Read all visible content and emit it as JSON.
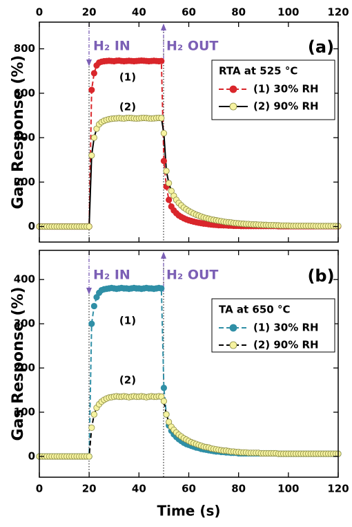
{
  "chart_data": [
    {
      "type": "line",
      "panel_label": "(a)",
      "ylabel": "Gas Response (%)",
      "annotations": [
        "H₂ IN",
        "H₂ OUT",
        "(1)",
        "(2)"
      ],
      "legend_title": "RTA at 525 °C",
      "legend": "upper right",
      "xlim": [
        0,
        120
      ],
      "xticks": [
        0,
        20,
        40,
        60,
        80,
        100,
        120
      ],
      "ylim": [
        -70,
        920
      ],
      "yticks": [
        0,
        200,
        400,
        600,
        800
      ],
      "grid": false,
      "x": [
        0,
        1,
        2,
        3,
        4,
        5,
        6,
        7,
        8,
        9,
        10,
        11,
        12,
        13,
        14,
        15,
        16,
        17,
        18,
        19,
        20,
        21,
        22,
        23,
        24,
        25,
        26,
        27,
        28,
        29,
        30,
        31,
        32,
        33,
        34,
        35,
        36,
        37,
        38,
        39,
        40,
        41,
        42,
        43,
        44,
        45,
        46,
        47,
        48,
        49,
        50,
        51,
        52,
        53,
        54,
        55,
        56,
        57,
        58,
        59,
        60,
        61,
        62,
        63,
        64,
        65,
        66,
        67,
        68,
        69,
        70,
        71,
        72,
        73,
        74,
        75,
        76,
        77,
        78,
        79,
        80,
        81,
        82,
        83,
        84,
        85,
        86,
        87,
        88,
        89,
        90,
        91,
        92,
        93,
        94,
        95,
        96,
        97,
        98,
        99,
        100,
        101,
        102,
        103,
        104,
        105,
        106,
        107,
        108,
        109,
        110,
        111,
        112,
        113,
        114,
        115,
        116,
        117,
        118,
        119,
        120
      ],
      "series": [
        {
          "name": "(1) 30% RH",
          "color": "#d9262b",
          "line_color": "#d9262b",
          "marker_edge": "#d9262b",
          "dash": true,
          "values": [
            0,
            0,
            0,
            0,
            0,
            0,
            0,
            0,
            0,
            0,
            0,
            0,
            0,
            0,
            0,
            0,
            0,
            0,
            0,
            0,
            0,
            615,
            690,
            725,
            738,
            742,
            744,
            745,
            746,
            745,
            744,
            746,
            747,
            745,
            744,
            745,
            746,
            745,
            744,
            745,
            746,
            747,
            746,
            745,
            744,
            745,
            746,
            745,
            744,
            745,
            295,
            180,
            120,
            90,
            72,
            60,
            50,
            43,
            37,
            32,
            28,
            25,
            22,
            19,
            17,
            15,
            13,
            12,
            10,
            9,
            8,
            7,
            6,
            6,
            5,
            5,
            4,
            4,
            3,
            3,
            3,
            2,
            2,
            2,
            2,
            2,
            2,
            2,
            2,
            2,
            2,
            2,
            2,
            2,
            2,
            2,
            1,
            1,
            1,
            1,
            1,
            1,
            1,
            1,
            1,
            1,
            1,
            1,
            1,
            1,
            1,
            1,
            1,
            1,
            1,
            1,
            1,
            1,
            1,
            1,
            1
          ]
        },
        {
          "name": "(2) 90% RH",
          "color": "#f6f3a1",
          "line_color": "#000000",
          "marker_edge": "#8a8a40",
          "dash": false,
          "values": [
            0,
            0,
            0,
            0,
            0,
            0,
            0,
            0,
            0,
            0,
            0,
            0,
            0,
            0,
            0,
            0,
            0,
            0,
            0,
            0,
            0,
            320,
            400,
            440,
            460,
            470,
            476,
            480,
            483,
            485,
            486,
            487,
            488,
            487,
            486,
            488,
            489,
            488,
            487,
            486,
            487,
            488,
            489,
            488,
            487,
            486,
            487,
            488,
            489,
            488,
            420,
            250,
            195,
            160,
            138,
            120,
            106,
            95,
            85,
            77,
            70,
            64,
            58,
            53,
            49,
            45,
            41,
            38,
            35,
            32,
            30,
            28,
            26,
            24,
            22,
            20,
            19,
            18,
            16,
            15,
            14,
            13,
            12,
            11,
            11,
            10,
            9,
            9,
            8,
            8,
            7,
            7,
            6,
            6,
            6,
            5,
            5,
            4,
            4,
            4,
            4,
            3,
            3,
            3,
            3,
            3,
            3,
            3,
            3,
            3,
            3,
            2,
            2,
            2,
            2,
            2,
            2,
            2,
            2,
            2,
            2
          ]
        }
      ]
    },
    {
      "type": "line",
      "panel_label": "(b)",
      "ylabel": "Gas Response (%)",
      "xlabel": "Time (s)",
      "annotations": [
        "H₂ IN",
        "H₂ OUT",
        "(1)",
        "(2)"
      ],
      "legend_title": "TA at 650 °C",
      "legend": "upper right",
      "xlim": [
        0,
        120
      ],
      "xticks": [
        0,
        20,
        40,
        60,
        80,
        100,
        120
      ],
      "ylim": [
        -47,
        466
      ],
      "yticks": [
        0,
        100,
        200,
        300,
        400
      ],
      "grid": false,
      "x": [
        0,
        1,
        2,
        3,
        4,
        5,
        6,
        7,
        8,
        9,
        10,
        11,
        12,
        13,
        14,
        15,
        16,
        17,
        18,
        19,
        20,
        21,
        22,
        23,
        24,
        25,
        26,
        27,
        28,
        29,
        30,
        31,
        32,
        33,
        34,
        35,
        36,
        37,
        38,
        39,
        40,
        41,
        42,
        43,
        44,
        45,
        46,
        47,
        48,
        49,
        50,
        51,
        52,
        53,
        54,
        55,
        56,
        57,
        58,
        59,
        60,
        61,
        62,
        63,
        64,
        65,
        66,
        67,
        68,
        69,
        70,
        71,
        72,
        73,
        74,
        75,
        76,
        77,
        78,
        79,
        80,
        81,
        82,
        83,
        84,
        85,
        86,
        87,
        88,
        89,
        90,
        91,
        92,
        93,
        94,
        95,
        96,
        97,
        98,
        99,
        100,
        101,
        102,
        103,
        104,
        105,
        106,
        107,
        108,
        109,
        110,
        111,
        112,
        113,
        114,
        115,
        116,
        117,
        118,
        119,
        120
      ],
      "series": [
        {
          "name": "(1) 30% RH",
          "color": "#2f8fa6",
          "line_color": "#2f8fa6",
          "marker_edge": "#2f8fa6",
          "dash": true,
          "values": [
            0,
            0,
            0,
            0,
            0,
            0,
            0,
            0,
            0,
            0,
            0,
            0,
            0,
            0,
            0,
            0,
            0,
            0,
            0,
            0,
            0,
            300,
            340,
            360,
            370,
            376,
            378,
            379,
            380,
            381,
            380,
            379,
            380,
            381,
            380,
            380,
            379,
            380,
            381,
            380,
            380,
            379,
            380,
            381,
            380,
            380,
            379,
            380,
            381,
            380,
            155,
            95,
            70,
            58,
            50,
            44,
            39,
            35,
            31,
            28,
            26,
            24,
            22,
            20,
            19,
            17,
            16,
            15,
            14,
            13,
            12,
            11,
            11,
            10,
            10,
            9,
            9,
            8,
            8,
            8,
            7,
            7,
            7,
            7,
            7,
            7,
            7,
            7,
            7,
            7,
            7,
            7,
            7,
            7,
            7,
            7,
            6,
            6,
            6,
            6,
            6,
            6,
            6,
            6,
            6,
            6,
            6,
            6,
            6,
            6,
            6,
            6,
            6,
            6,
            6,
            6,
            6,
            6,
            6,
            6,
            6
          ]
        },
        {
          "name": "(2) 90% RH",
          "color": "#f6f3a1",
          "line_color": "#000000",
          "marker_edge": "#8a8a40",
          "dash": true,
          "values": [
            0,
            0,
            0,
            0,
            0,
            0,
            0,
            0,
            0,
            0,
            0,
            0,
            0,
            0,
            0,
            0,
            0,
            0,
            0,
            0,
            0,
            65,
            95,
            110,
            118,
            124,
            128,
            131,
            133,
            134,
            135,
            136,
            135,
            135,
            136,
            135,
            134,
            135,
            136,
            135,
            135,
            136,
            135,
            134,
            135,
            136,
            135,
            135,
            136,
            135,
            125,
            95,
            78,
            67,
            60,
            54,
            49,
            45,
            41,
            38,
            35,
            32,
            30,
            28,
            26,
            24,
            22,
            21,
            20,
            18,
            17,
            16,
            15,
            14,
            13,
            13,
            12,
            11,
            11,
            10,
            10,
            9,
            9,
            9,
            8,
            8,
            8,
            8,
            8,
            7,
            7,
            7,
            7,
            7,
            7,
            7,
            6,
            6,
            6,
            6,
            6,
            6,
            6,
            6,
            6,
            6,
            6,
            6,
            6,
            6,
            6,
            6,
            6,
            6,
            6,
            6,
            6,
            6,
            6,
            6,
            6
          ]
        }
      ]
    }
  ]
}
